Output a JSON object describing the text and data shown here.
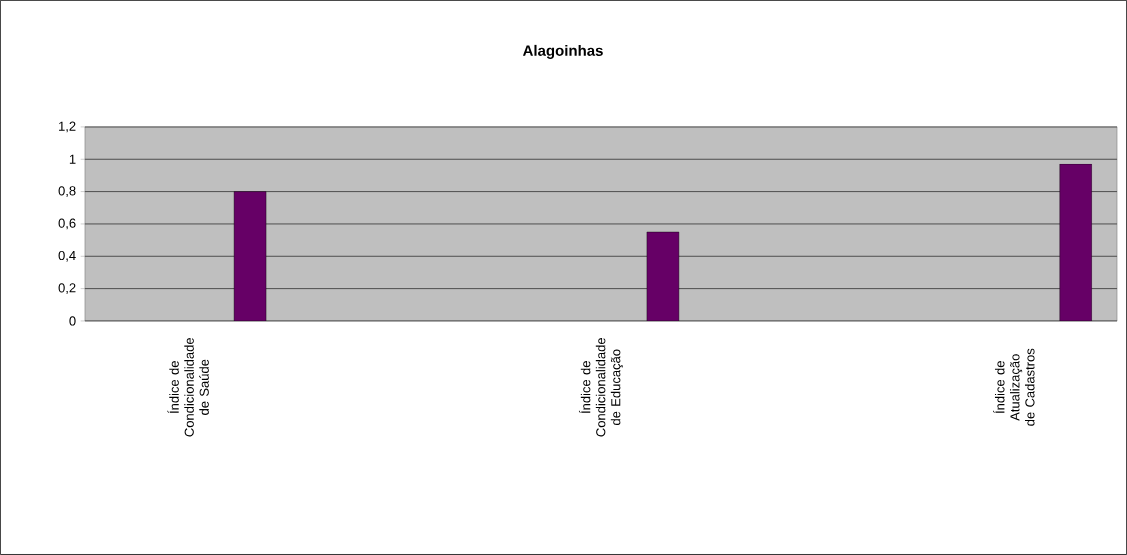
{
  "chart_data": {
    "type": "bar",
    "title": "Alagoinhas",
    "categories": [
      "Índice de Condicionalidade de Saúde",
      null,
      "Índice de Condicionalidade de Educação",
      null,
      "Índice de Atualização de Cadastros"
    ],
    "values": [
      0.8,
      null,
      0.55,
      null,
      0.97
    ],
    "color": "#660066",
    "ylim": [
      0,
      1.2
    ],
    "yticks": [
      0,
      {
        "value": 0.2,
        "label": "0,2"
      },
      {
        "value": 0.4,
        "label": "0,4"
      },
      {
        "value": 0.6,
        "label": "0,6"
      },
      {
        "value": 0.8,
        "label": "0,8"
      },
      1,
      {
        "value": 1.2,
        "label": "1,2"
      }
    ],
    "grid": "y"
  }
}
